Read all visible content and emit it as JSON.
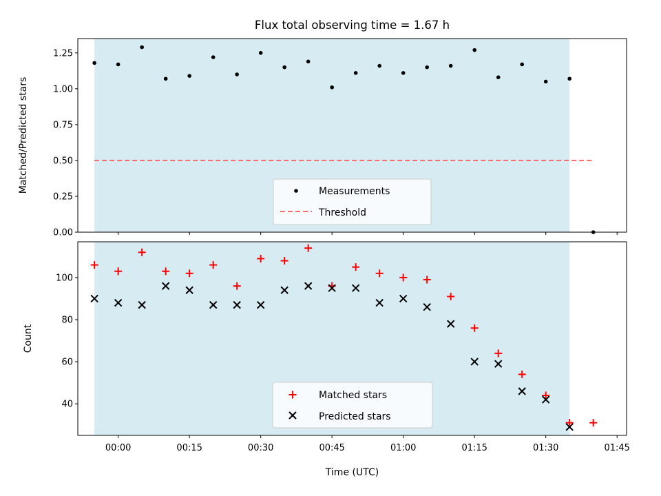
{
  "chart_data": [
    {
      "type": "scatter",
      "title": "Flux total observing time = 1.67 h",
      "xlabel": "",
      "ylabel": "Matched/Predicted stars",
      "x_unit": "minutes since 00:00 UTC",
      "xlim": [
        -8.5,
        107
      ],
      "ylim": [
        0,
        1.35
      ],
      "yticks": [
        0.0,
        0.25,
        0.5,
        0.75,
        1.0,
        1.25
      ],
      "ytick_labels": [
        "0.00",
        "0.25",
        "0.50",
        "0.75",
        "1.00",
        "1.25"
      ],
      "observing_window": [
        -5,
        95
      ],
      "observing_window_color": "#add8e6",
      "series": [
        {
          "name": "Measurements",
          "marker": "dot",
          "color": "#000000",
          "x": [
            -5,
            0,
            5,
            10,
            15,
            20,
            25,
            30,
            35,
            40,
            45,
            50,
            55,
            60,
            65,
            70,
            75,
            80,
            85,
            90,
            95,
            100
          ],
          "y": [
            1.18,
            1.17,
            1.29,
            1.07,
            1.09,
            1.22,
            1.1,
            1.25,
            1.15,
            1.19,
            1.01,
            1.11,
            1.16,
            1.11,
            1.15,
            1.16,
            1.27,
            1.08,
            1.17,
            1.05,
            1.07,
            0.0
          ]
        },
        {
          "name": "Threshold",
          "marker": "dashed-line",
          "color": "#ff6666",
          "x": [
            -5,
            100
          ],
          "y": [
            0.5,
            0.5
          ]
        }
      ],
      "legend": [
        "Measurements",
        "Threshold"
      ],
      "legend_position": "bottom-center"
    },
    {
      "type": "scatter",
      "title": "",
      "xlabel": "Time (UTC)",
      "ylabel": "Count",
      "x_unit": "minutes since 00:00 UTC",
      "xlim": [
        -8.5,
        107
      ],
      "ylim": [
        25,
        117
      ],
      "yticks": [
        40,
        60,
        80,
        100
      ],
      "ytick_labels": [
        "40",
        "60",
        "80",
        "100"
      ],
      "xticks": [
        0,
        15,
        30,
        45,
        60,
        75,
        90,
        105
      ],
      "xtick_labels": [
        "00:00",
        "00:15",
        "00:30",
        "00:45",
        "01:00",
        "01:15",
        "01:30",
        "01:45"
      ],
      "observing_window": [
        -5,
        95
      ],
      "observing_window_color": "#add8e6",
      "series": [
        {
          "name": "Matched stars",
          "marker": "plus",
          "color": "#ff0000",
          "x": [
            -5,
            0,
            5,
            10,
            15,
            20,
            25,
            30,
            35,
            40,
            45,
            50,
            55,
            60,
            65,
            70,
            75,
            80,
            85,
            90,
            95,
            100
          ],
          "y": [
            106,
            103,
            112,
            103,
            102,
            106,
            96,
            109,
            108,
            114,
            96,
            105,
            102,
            100,
            99,
            91,
            76,
            64,
            54,
            44,
            31,
            31
          ]
        },
        {
          "name": "Predicted stars",
          "marker": "x",
          "color": "#000000",
          "x": [
            -5,
            0,
            5,
            10,
            15,
            20,
            25,
            30,
            35,
            40,
            45,
            50,
            55,
            60,
            65,
            70,
            75,
            80,
            85,
            90,
            95
          ],
          "y": [
            90,
            88,
            87,
            96,
            94,
            87,
            87,
            87,
            94,
            96,
            95,
            95,
            88,
            90,
            86,
            78,
            60,
            59,
            46,
            42,
            29
          ]
        }
      ],
      "legend": [
        "Matched stars",
        "Predicted stars"
      ],
      "legend_position": "bottom-center"
    }
  ]
}
